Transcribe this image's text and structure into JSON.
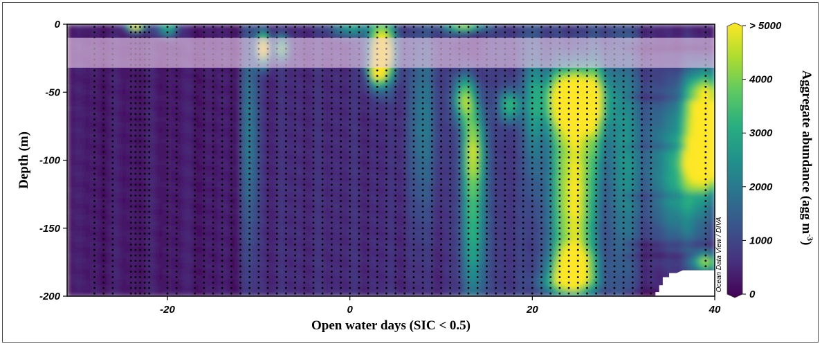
{
  "chart_data": {
    "type": "heatmap",
    "title": "",
    "xlabel": "Open water days (SIC < 0.5)",
    "ylabel": "Depth (m)",
    "xlim": [
      -31,
      40
    ],
    "ylim": [
      -200,
      0
    ],
    "x_ticks": [
      "-20",
      "0",
      "20",
      "40"
    ],
    "x_tick_values": [
      -20,
      0,
      20,
      40
    ],
    "y_ticks": [
      "0",
      "-50",
      "-100",
      "-150",
      "-200"
    ],
    "y_tick_values": [
      0,
      -50,
      -100,
      -150,
      -200
    ],
    "colorbar": {
      "label": "Aggregate abundance (agg m",
      "label_sup": "-3",
      "label_close": ")",
      "ticks": [
        "> 5000",
        "4000",
        "3000",
        "2000",
        "1000",
        "0"
      ],
      "tick_values": [
        5000,
        4000,
        3000,
        2000,
        1000,
        0
      ],
      "range": [
        0,
        5000
      ],
      "colors": [
        "#440154",
        "#472f7d",
        "#3b528b",
        "#2c728e",
        "#21918c",
        "#28ae80",
        "#5ec962",
        "#addc30",
        "#fde725"
      ]
    },
    "watermark": "Ocean Data View / DIVA",
    "highlight_band_depth": [
      -10,
      -32
    ],
    "highlight_color": "#f2d3f0",
    "sample_days": [
      -28,
      -27,
      -26,
      -24,
      -23.5,
      -23,
      -22.5,
      -22,
      -20,
      -19,
      -17,
      -16,
      -15,
      -14,
      -13,
      -12,
      -11,
      -10,
      -9,
      -8,
      -7,
      -6,
      -5,
      -4,
      -3,
      -2,
      -1,
      0,
      1,
      2,
      3,
      4,
      5,
      6,
      7,
      8,
      9,
      10,
      11,
      12,
      13,
      14,
      15,
      16,
      17,
      18,
      19,
      20,
      21,
      22,
      23,
      24,
      25,
      26,
      27,
      28,
      29,
      30,
      31,
      32,
      33,
      39
    ],
    "sample_depths": [
      -2,
      -6,
      -10,
      -14,
      -18,
      -22,
      -26,
      -30,
      -34,
      -38,
      -42,
      -46,
      -50,
      -54,
      -58,
      -62,
      -66,
      -70,
      -74,
      -78,
      -82,
      -86,
      -90,
      -94,
      -98,
      -102,
      -106,
      -110,
      -114,
      -118,
      -122,
      -126,
      -130,
      -134,
      -138,
      -142,
      -146,
      -150,
      -154,
      -158,
      -162,
      -166,
      -170,
      -174,
      -178,
      -182,
      -186,
      -190,
      -194,
      -198
    ],
    "hotspots": [
      {
        "day": 24.5,
        "depth": -55,
        "sx": 2.2,
        "sy": 16,
        "value": 5600
      },
      {
        "day": 24.5,
        "depth": -95,
        "sx": 1.8,
        "sy": 30,
        "value": 3100
      },
      {
        "day": 24.5,
        "depth": -150,
        "sx": 1.6,
        "sy": 30,
        "value": 3300
      },
      {
        "day": 24.5,
        "depth": -178,
        "sx": 1.6,
        "sy": 10,
        "value": 3600
      },
      {
        "day": 24,
        "depth": -190,
        "sx": 2.0,
        "sy": 6,
        "value": 2500
      },
      {
        "day": 3.5,
        "depth": -20,
        "sx": 1.0,
        "sy": 16,
        "value": 5600
      },
      {
        "day": 3.0,
        "depth": -35,
        "sx": 0.6,
        "sy": 6,
        "value": 3000
      },
      {
        "day": 13.5,
        "depth": -140,
        "sx": 0.9,
        "sy": 55,
        "value": 3100
      },
      {
        "day": 12.5,
        "depth": -55,
        "sx": 0.8,
        "sy": 12,
        "value": 3200
      },
      {
        "day": 13.5,
        "depth": -90,
        "sx": 0.8,
        "sy": 20,
        "value": 2400
      },
      {
        "day": 17.5,
        "depth": -60,
        "sx": 0.8,
        "sy": 8,
        "value": 2600
      },
      {
        "day": 39,
        "depth": -60,
        "sx": 1.6,
        "sy": 18,
        "value": 5000
      },
      {
        "day": 39,
        "depth": -100,
        "sx": 1.6,
        "sy": 15,
        "value": 5600
      },
      {
        "day": 39,
        "depth": -175,
        "sx": 1.0,
        "sy": 5,
        "value": 3500
      },
      {
        "day": 37,
        "depth": -130,
        "sx": 2.5,
        "sy": 30,
        "value": 1600
      },
      {
        "day": 35,
        "depth": -90,
        "sx": 3.0,
        "sy": 40,
        "value": 1500
      },
      {
        "day": -9.5,
        "depth": -18,
        "sx": 0.5,
        "sy": 8,
        "value": 5000
      },
      {
        "day": -7.5,
        "depth": -18,
        "sx": 0.5,
        "sy": 6,
        "value": 3500
      },
      {
        "day": -23.5,
        "depth": -1,
        "sx": 0.7,
        "sy": 3,
        "value": 4800
      },
      {
        "day": -20,
        "depth": -3,
        "sx": 0.8,
        "sy": 4,
        "value": 3000
      },
      {
        "day": 0,
        "depth": -3,
        "sx": 1.5,
        "sy": 4,
        "value": 2200
      },
      {
        "day": 12.5,
        "depth": -2,
        "sx": 1.5,
        "sy": 3,
        "value": 3500
      },
      {
        "day": 20,
        "depth": -60,
        "sx": 0.6,
        "sy": 40,
        "value": 1600
      },
      {
        "day": -11,
        "depth": -80,
        "sx": 0.6,
        "sy": 60,
        "value": 1500
      },
      {
        "day": 8,
        "depth": -70,
        "sx": 1.2,
        "sy": 50,
        "value": 1400
      },
      {
        "day": 27,
        "depth": -60,
        "sx": 0.8,
        "sy": 30,
        "value": 1500
      },
      {
        "day": 30,
        "depth": -100,
        "sx": 1.0,
        "sy": 60,
        "value": 1300
      }
    ]
  }
}
